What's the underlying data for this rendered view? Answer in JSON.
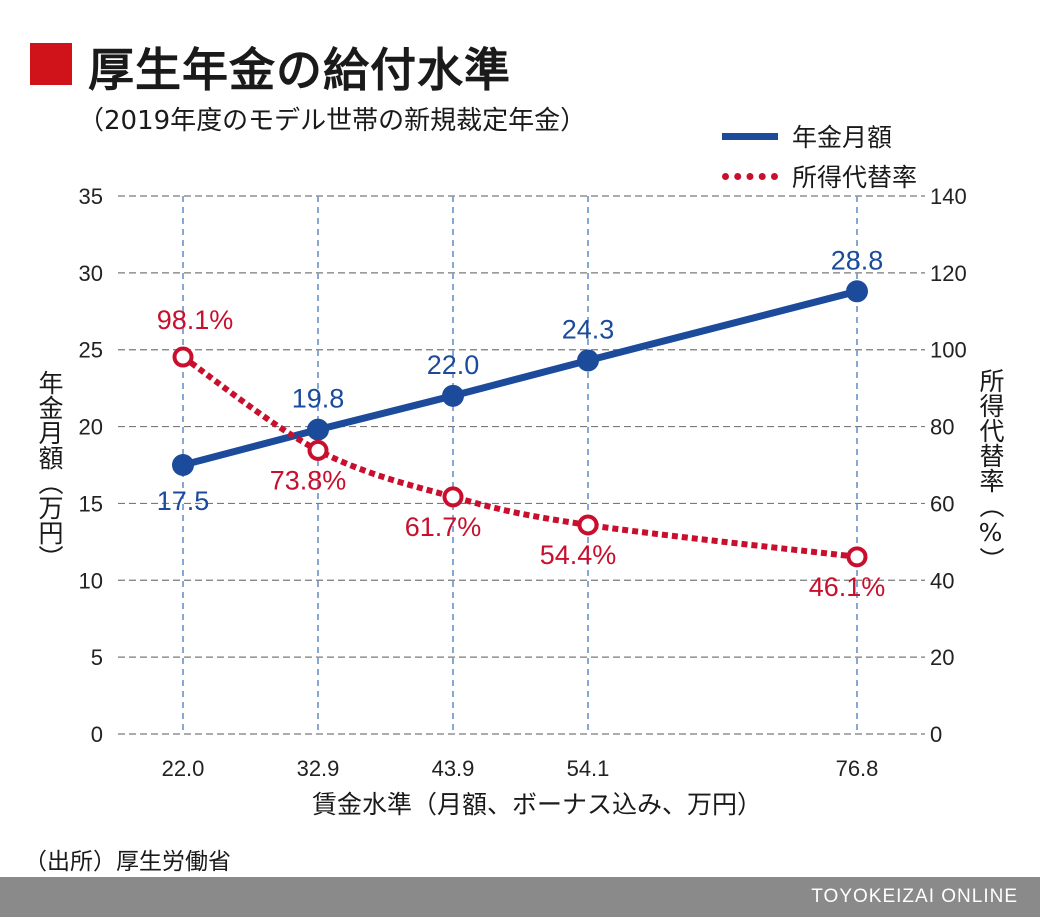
{
  "header": {
    "title": "厚生年金の給付水準",
    "subtitle": "（2019年度のモデル世帯の新規裁定年金）"
  },
  "legend": {
    "items": [
      {
        "label": "年金月額",
        "color": "#1b4b9a",
        "style": "solid"
      },
      {
        "label": "所得代替率",
        "color": "#c8102e",
        "style": "dotted"
      }
    ]
  },
  "source": "（出所）厚生労働省",
  "footer": {
    "brand": "TOYOKEIZAI ONLINE"
  },
  "chart_data": {
    "type": "line",
    "title": "厚生年金の給付水準",
    "subtitle": "（2019年度のモデル世帯の新規裁定年金）",
    "xlabel": "賃金水準（月額、ボーナス込み、万円）",
    "ylabel_left": "年金月額（万円）",
    "ylabel_right": "所得代替率（%）",
    "x": [
      22.0,
      32.9,
      43.9,
      54.1,
      76.8
    ],
    "x_tick_labels": [
      "22.0",
      "32.9",
      "43.9",
      "54.1",
      "76.8"
    ],
    "y_left_ticks": [
      "0",
      "5",
      "10",
      "15",
      "20",
      "25",
      "30",
      "35"
    ],
    "y_right_ticks": [
      "0",
      "20",
      "40",
      "60",
      "80",
      "100",
      "120",
      "140"
    ],
    "ylim_left": [
      0,
      35
    ],
    "ylim_right": [
      0,
      140
    ],
    "grid": "vertical dashed",
    "legend_position": "top-right",
    "series": [
      {
        "name": "年金月額",
        "axis": "left",
        "color": "#1b4b9a",
        "style": "solid",
        "values": [
          17.5,
          19.8,
          22.0,
          24.3,
          28.8
        ],
        "labels": [
          "17.5",
          "19.8",
          "22.0",
          "24.3",
          "28.8"
        ]
      },
      {
        "name": "所得代替率",
        "axis": "right",
        "color": "#c8102e",
        "style": "dotted",
        "values": [
          98.1,
          73.8,
          61.7,
          54.4,
          46.1
        ],
        "labels": [
          "98.1%",
          "73.8%",
          "61.7%",
          "54.4%",
          "46.1%"
        ]
      }
    ]
  }
}
